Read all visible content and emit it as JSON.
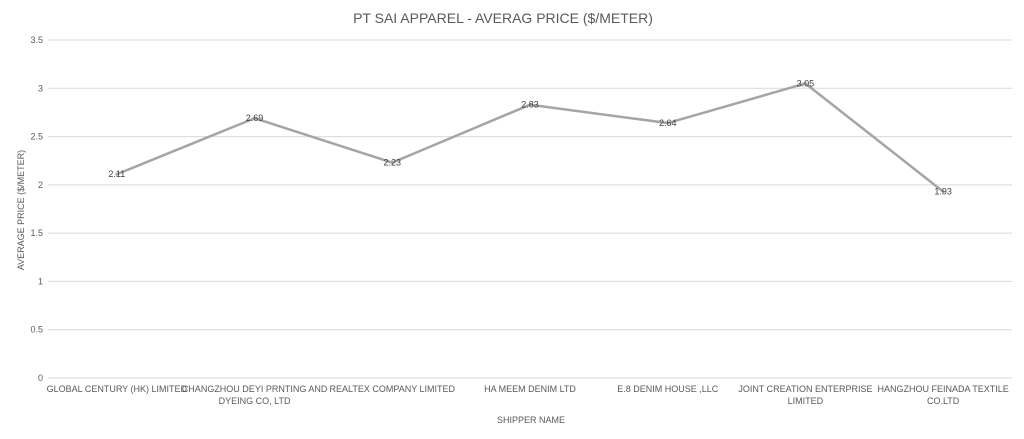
{
  "chart_data": {
    "type": "line",
    "title": "PT SAI APPAREL - AVERAG PRICE ($/METER)",
    "xlabel": "SHIPPER NAME",
    "ylabel": "AVERAGE  PRICE  ($/METER)",
    "categories": [
      [
        "GLOBAL CENTURY (HK) LIMITED"
      ],
      [
        "CHANGZHOU DEYI PRNTING AND",
        "DYEING CO, LTD"
      ],
      [
        "REALTEX COMPANY LIMITED"
      ],
      [
        "HA MEEM DENIM LTD"
      ],
      [
        "E.8 DENIM HOUSE ,LLC"
      ],
      [
        "JOINT CREATION ENTERPRISE",
        "LIMITED"
      ],
      [
        "HANGZHOU FEINADA TEXTILE",
        "CO.LTD"
      ]
    ],
    "series": [
      {
        "values": [
          2.11,
          2.69,
          2.23,
          2.83,
          2.64,
          3.05,
          1.93
        ]
      }
    ],
    "data_labels": [
      "2.11",
      "2.69",
      "2.23",
      "2.83",
      "2.64",
      "3.05",
      "1.93"
    ],
    "yticks": [
      "0",
      "0.5",
      "1",
      "1.5",
      "2",
      "2.5",
      "3",
      "3.5"
    ],
    "ylim": [
      0,
      3.5
    ],
    "grid": true,
    "legend": "none",
    "line_color": "#a5a5a5"
  }
}
